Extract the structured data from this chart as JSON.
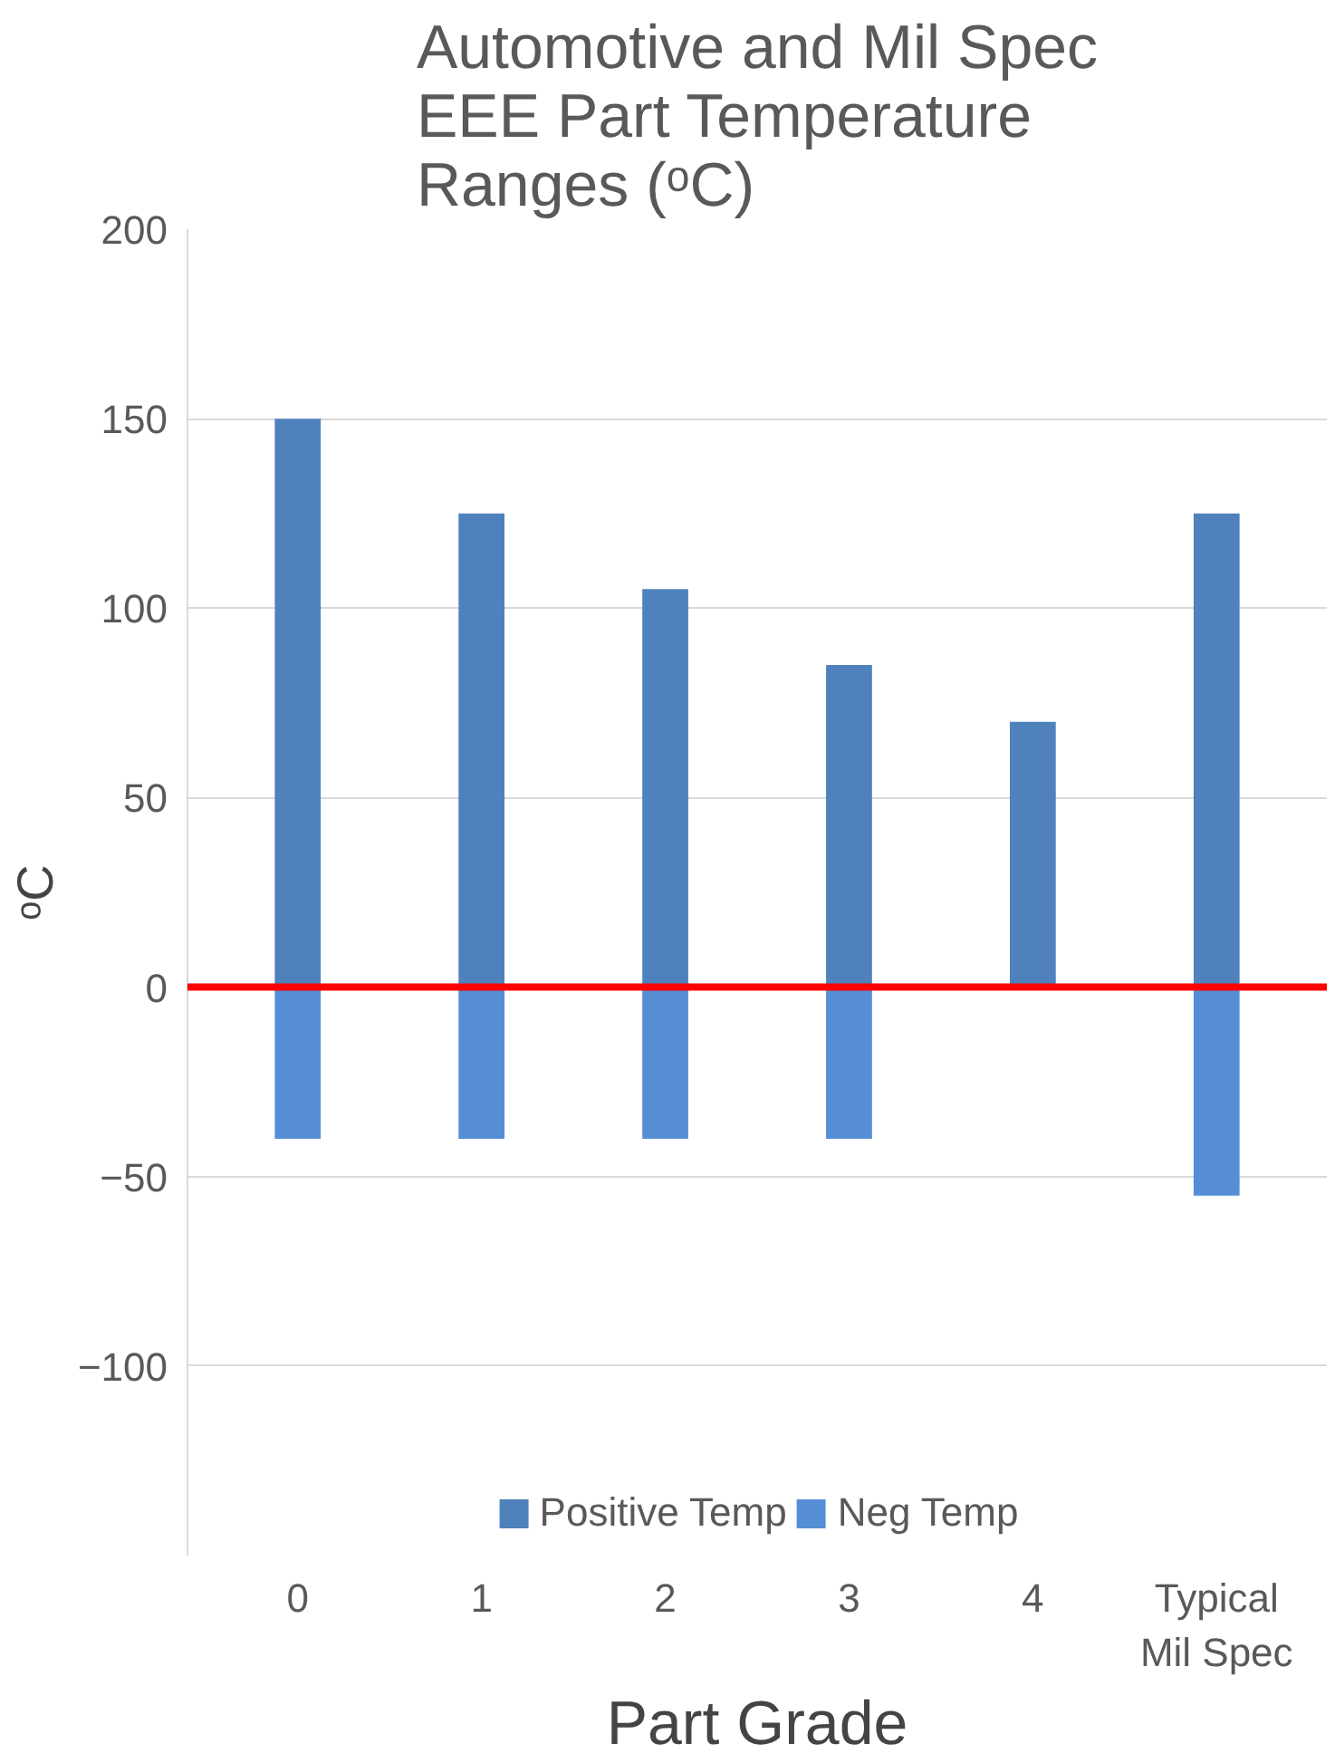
{
  "chart_data": {
    "type": "bar",
    "title": "Automotive and Mil Spec EEE Part Temperature Ranges (ᵒC)",
    "xlabel": "Part Grade",
    "ylabel": "ᵒC",
    "categories": [
      "0",
      "1",
      "2",
      "3",
      "4",
      "Typical Mil Spec"
    ],
    "series": [
      {
        "name": "Positive Temp",
        "color": "#4f81bd",
        "values": [
          150,
          125,
          105,
          85,
          70,
          125
        ]
      },
      {
        "name": "Neg Temp",
        "color": "#558ed5",
        "values": [
          -40,
          -40,
          -40,
          -40,
          0,
          -55
        ]
      }
    ],
    "stacked": true,
    "ylim": [
      -150,
      200
    ],
    "yticks": [
      -100,
      -50,
      0,
      50,
      100,
      150,
      200
    ],
    "grid": "y",
    "legend": "bottom",
    "ref_lines": [
      {
        "axis": "y",
        "value": 0,
        "color": "#ff0000"
      }
    ]
  }
}
